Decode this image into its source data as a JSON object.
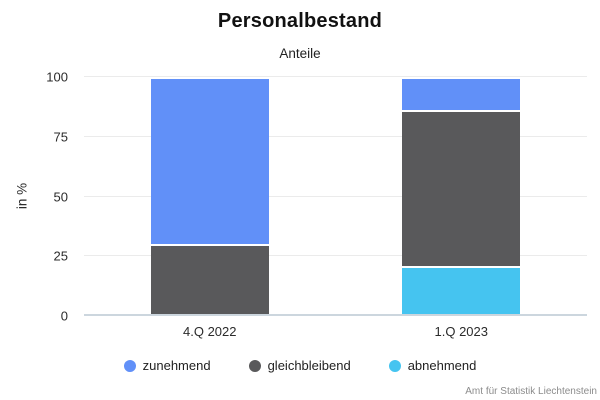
{
  "title": "Personalbestand",
  "subtitle": "Anteile",
  "source": "Amt für Statistik Liechtenstein",
  "colors": {
    "zunehmend": "#6190f8",
    "gleichbleibend": "#59595b",
    "abnehmend": "#45c4f0",
    "gridline": "#ebebeb",
    "baseline": "#ccd6de",
    "title_text": "#111111",
    "axis_text": "#2b2b2b",
    "source_text": "#8c8c8c"
  },
  "chart_data": {
    "type": "bar",
    "stacked": true,
    "title": "Personalbestand",
    "subtitle": "Anteile",
    "categories": [
      "4.Q 2022",
      "1.Q 2023"
    ],
    "series": [
      {
        "name": "zunehmend",
        "color": "#6190f8",
        "values": [
          70,
          14
        ]
      },
      {
        "name": "gleichbleibend",
        "color": "#59595b",
        "values": [
          30,
          65
        ]
      },
      {
        "name": "abnehmend",
        "color": "#45c4f0",
        "values": [
          0,
          21
        ]
      }
    ],
    "xlabel": "",
    "ylabel": "in %",
    "ylim": [
      0,
      100
    ],
    "yticks": [
      0,
      25,
      50,
      75,
      100
    ],
    "grid": true,
    "legend_position": "bottom",
    "source": "Amt für Statistik Liechtenstein"
  }
}
